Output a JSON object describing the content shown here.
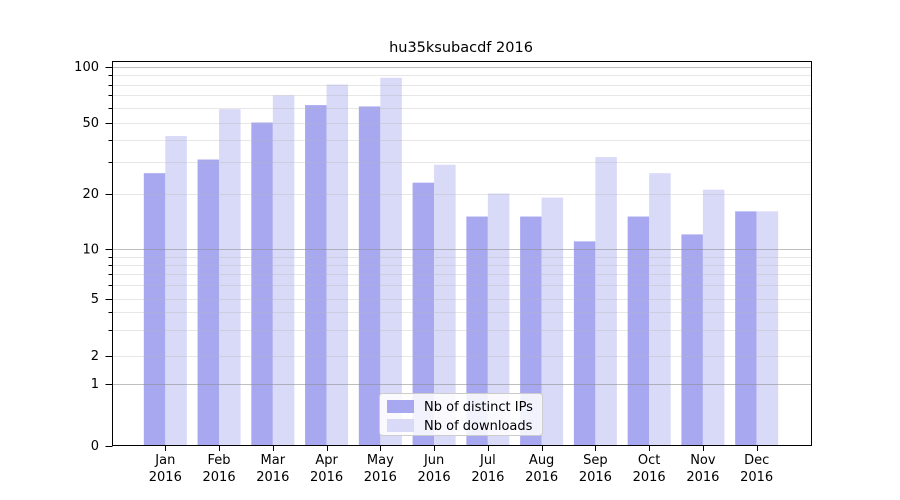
{
  "chart_data": {
    "type": "bar",
    "title": "hu35ksubacdf 2016",
    "categories": [
      "Jan",
      "Feb",
      "Mar",
      "Apr",
      "May",
      "Jun",
      "Jul",
      "Aug",
      "Sep",
      "Oct",
      "Nov",
      "Dec"
    ],
    "year_label": "2016",
    "series": [
      {
        "name": "Nb of distinct IPs",
        "color": "#a8a8f0",
        "values": [
          26,
          31,
          50,
          62,
          61,
          23,
          15,
          15,
          11,
          15,
          12,
          16
        ]
      },
      {
        "name": "Nb of downloads",
        "color": "#d9d9f8",
        "values": [
          42,
          59,
          70,
          80,
          87,
          29,
          20,
          19,
          32,
          26,
          21,
          16
        ]
      }
    ],
    "y_axis": {
      "scale": "log1p",
      "ticks": [
        0,
        1,
        2,
        5,
        10,
        20,
        50,
        100
      ],
      "minor_gridlines": [
        3,
        4,
        6,
        7,
        8,
        9,
        30,
        40,
        60,
        70,
        80,
        90
      ],
      "major_gridlines": [
        1,
        10,
        100
      ],
      "ylim": [
        0,
        105
      ]
    },
    "grid": true,
    "legend_position": "lower center"
  }
}
